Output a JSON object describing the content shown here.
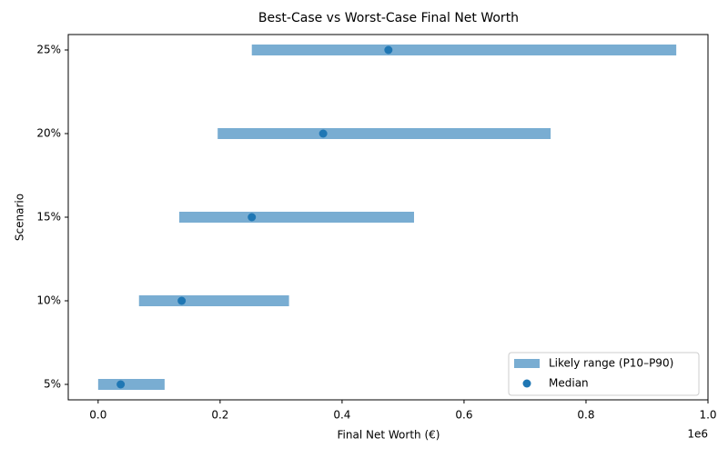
{
  "chart_data": {
    "type": "range",
    "title": "Best-Case vs Worst-Case Final Net Worth",
    "xlabel": "Final Net Worth (€)",
    "ylabel": "Scenario",
    "x_offset_label": "1e6",
    "categories": [
      "5%",
      "10%",
      "15%",
      "20%",
      "25%"
    ],
    "series": [
      {
        "name": "Likely range (P10–P90)",
        "color": "#79add2",
        "low": [
          0,
          67000,
          133000,
          196000,
          252000
        ],
        "high": [
          109000,
          313000,
          518000,
          742000,
          948000
        ]
      },
      {
        "name": "Median",
        "color": "#1f77b4",
        "values": [
          37000,
          137000,
          252000,
          369000,
          476000
        ]
      }
    ],
    "xlim": [
      -49000,
      1000000
    ],
    "xticks": [
      {
        "value": 0,
        "label": "0.0"
      },
      {
        "value": 200000,
        "label": "0.2"
      },
      {
        "value": 400000,
        "label": "0.4"
      },
      {
        "value": 600000,
        "label": "0.6"
      },
      {
        "value": 800000,
        "label": "0.8"
      },
      {
        "value": 1000000,
        "label": "1.0"
      }
    ],
    "legend": "lower right"
  }
}
